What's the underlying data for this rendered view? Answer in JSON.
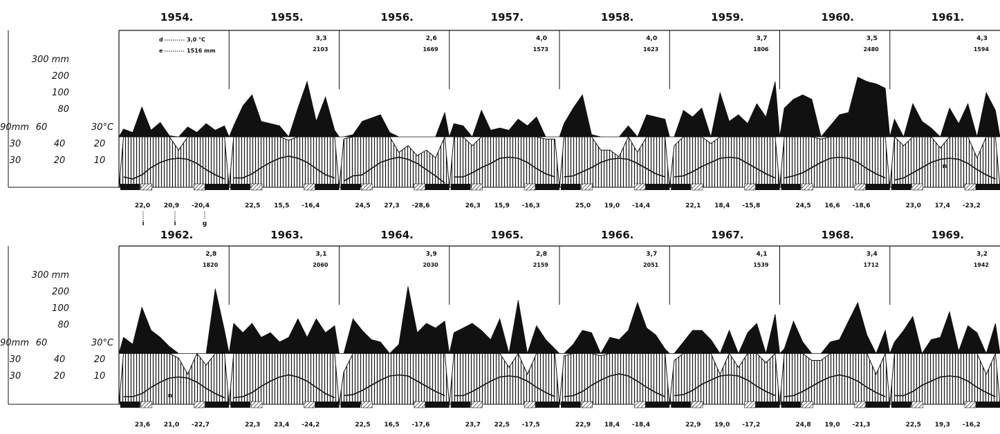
{
  "chart_data": {
    "type": "climate-diagram",
    "legend": {
      "d_label": "d",
      "d_value": "3,0 °C",
      "e_label": "e",
      "e_value": "1516 mm",
      "footnote_letters": [
        "i",
        "i",
        "g"
      ],
      "n_label": "n"
    },
    "axis_labels": {
      "precip_scale": [
        "300 mm",
        "200",
        "100",
        "80",
        "60",
        "40",
        "20"
      ],
      "precip_scale_low": [
        "90mm",
        "60",
        "30"
      ],
      "temp_scale": [
        "30°C",
        "20",
        "10"
      ]
    },
    "rows": [
      {
        "years": [
          {
            "year": "1954.",
            "temp": "",
            "precip": "",
            "bottom": [
              "22,0",
              "20,9",
              "-20,4"
            ],
            "precip_monthly": [
              135,
              120,
              235,
              130,
              165,
              105,
              40,
              145,
              120,
              160,
              130,
              150
            ],
            "temp_monthly": [
              -4,
              -6,
              -2,
              5,
              10,
              13,
              14,
              13,
              9,
              3,
              -2,
              -6
            ]
          },
          {
            "year": "1955.",
            "temp": "3,3",
            "precip": "2103",
            "bottom": [
              "22,5",
              "15,5",
              "-16,4"
            ],
            "precip_monthly": [
              150,
              240,
              290,
              170,
              160,
              150,
              85,
              230,
              350,
              170,
              280,
              130
            ],
            "temp_monthly": [
              -5,
              -5,
              -1,
              5,
              10,
              14,
              16,
              14,
              10,
              4,
              -2,
              -5
            ]
          },
          {
            "year": "1956.",
            "temp": "2,6",
            "precip": "1669",
            "bottom": [
              "24,5",
              "27,3",
              "-28,6"
            ],
            "precip_monthly": [
              90,
              110,
              170,
              185,
              200,
              120,
              30,
              60,
              15,
              40,
              5,
              210
            ],
            "temp_monthly": [
              -8,
              -3,
              -2,
              4,
              10,
              13,
              15,
              13,
              9,
              3,
              -3,
              -10
            ]
          },
          {
            "year": "1957.",
            "temp": "4,0",
            "precip": "1573",
            "bottom": [
              "26,3",
              "15,9",
              "-16,3"
            ],
            "precip_monthly": [
              160,
              150,
              60,
              220,
              130,
              140,
              130,
              180,
              150,
              190,
              90,
              90
            ],
            "temp_monthly": [
              -4,
              -4,
              0,
              5,
              9,
              14,
              15,
              14,
              10,
              4,
              -1,
              -4
            ]
          },
          {
            "year": "1958.",
            "temp": "4,0",
            "precip": "1623",
            "bottom": [
              "25,0",
              "19,0",
              "-14,4"
            ],
            "precip_monthly": [
              160,
              230,
              290,
              110,
              40,
              40,
              10,
              150,
              30,
              200,
              190,
              180
            ],
            "temp_monthly": [
              -4,
              -3,
              1,
              5,
              10,
              13,
              14,
              13,
              9,
              4,
              -1,
              -4
            ]
          },
          {
            "year": "1959.",
            "temp": "3,7",
            "precip": "1806",
            "bottom": [
              "22,1",
              "18,4",
              "-15,8"
            ],
            "precip_monthly": [
              60,
              220,
              190,
              230,
              70,
              300,
              170,
              200,
              160,
              250,
              190,
              350
            ],
            "temp_monthly": [
              -4,
              -3,
              1,
              6,
              10,
              14,
              15,
              14,
              9,
              4,
              -1,
              -5
            ]
          },
          {
            "year": "1960.",
            "temp": "3,5",
            "precip": "2480",
            "bottom": [
              "24,5",
              "16,6",
              "-18,6"
            ],
            "precip_monthly": [
              230,
              270,
              290,
              270,
              90,
              150,
              200,
              210,
              370,
              350,
              340,
              320
            ],
            "temp_monthly": [
              -5,
              -3,
              0,
              5,
              10,
              14,
              15,
              14,
              10,
              4,
              -1,
              -5
            ]
          },
          {
            "year": "1961.",
            "temp": "4,3",
            "precip": "1594",
            "bottom": [
              "23,0",
              "17,4",
              "-23,2"
            ],
            "precip_monthly": [
              180,
              60,
              250,
              170,
              140,
              50,
              230,
              160,
              250,
              5,
              300,
              220
            ],
            "temp_monthly": [
              -7,
              -5,
              0,
              5,
              10,
              13,
              14,
              13,
              9,
              3,
              -2,
              -6
            ]
          }
        ]
      },
      {
        "years": [
          {
            "year": "1962.",
            "temp": "2,8",
            "precip": "1820",
            "bottom": [
              "23,6",
              "21,0",
              "-22,7"
            ],
            "precip_monthly": [
              170,
              140,
              300,
              200,
              170,
              130,
              80,
              10,
              100,
              50,
              380,
              200
            ],
            "temp_monthly": [
              -6,
              -6,
              -3,
              3,
              8,
              12,
              13,
              12,
              8,
              2,
              -3,
              -7
            ]
          },
          {
            "year": "1963.",
            "temp": "3,1",
            "precip": "2060",
            "bottom": [
              "22,3",
              "23,4",
              "-24,2"
            ],
            "precip_monthly": [
              230,
              190,
              230,
              170,
              190,
              150,
              170,
              250,
              170,
              250,
              190,
              220
            ],
            "temp_monthly": [
              -7,
              -6,
              -2,
              4,
              9,
              13,
              15,
              13,
              9,
              3,
              -3,
              -7
            ]
          },
          {
            "year": "1964.",
            "temp": "3,9",
            "precip": "2030",
            "bottom": [
              "22,5",
              "16,5",
              "-17,6"
            ],
            "precip_monthly": [
              20,
              250,
              200,
              160,
              150,
              100,
              140,
              390,
              190,
              230,
              210,
              240
            ],
            "temp_monthly": [
              -5,
              -4,
              0,
              5,
              10,
              14,
              15,
              14,
              9,
              4,
              -1,
              -5
            ]
          },
          {
            "year": "1965.",
            "temp": "2,8",
            "precip": "2159",
            "bottom": [
              "23,7",
              "22,5",
              "-17,5"
            ],
            "precip_monthly": [
              190,
              210,
              230,
              200,
              160,
              250,
              40,
              330,
              10,
              220,
              160,
              120
            ],
            "temp_monthly": [
              -5,
              -5,
              -1,
              4,
              9,
              13,
              14,
              13,
              9,
              3,
              -2,
              -6
            ]
          },
          {
            "year": "1966.",
            "temp": "3,7",
            "precip": "2051",
            "bottom": [
              "22,9",
              "18,4",
              "-18,4"
            ],
            "precip_monthly": [
              90,
              140,
              200,
              190,
              90,
              170,
              160,
              200,
              320,
              210,
              180,
              120
            ],
            "temp_monthly": [
              -6,
              -5,
              -1,
              5,
              10,
              14,
              16,
              14,
              9,
              3,
              -2,
              -6
            ]
          },
          {
            "year": "1967.",
            "temp": "4,1",
            "precip": "1539",
            "bottom": [
              "22,9",
              "19,0",
              "-17,2"
            ],
            "precip_monthly": [
              70,
              150,
              200,
              200,
              160,
              10,
              200,
              40,
              190,
              230,
              60,
              270
            ],
            "temp_monthly": [
              -5,
              -4,
              0,
              6,
              10,
              14,
              15,
              14,
              10,
              4,
              -1,
              -5
            ]
          },
          {
            "year": "1968.",
            "temp": "3,4",
            "precip": "1712",
            "bottom": [
              "24,8",
              "19,0",
              "-21,3"
            ],
            "precip_monthly": [
              120,
              240,
              150,
              70,
              70,
              150,
              160,
              240,
              320,
              180,
              10,
              200
            ],
            "temp_monthly": [
              -6,
              -5,
              -1,
              4,
              9,
              13,
              15,
              13,
              9,
              3,
              -2,
              -6
            ]
          },
          {
            "year": "1969.",
            "temp": "3,2",
            "precip": "1942",
            "bottom": [
              "22,5",
              "19,3",
              "-16,2"
            ],
            "precip_monthly": [
              150,
              200,
              260,
              100,
              160,
              170,
              280,
              110,
              220,
              190,
              10,
              230
            ],
            "temp_monthly": [
              -5,
              -5,
              -1,
              5,
              9,
              13,
              14,
              13,
              9,
              3,
              -2,
              -6
            ]
          }
        ]
      }
    ]
  }
}
